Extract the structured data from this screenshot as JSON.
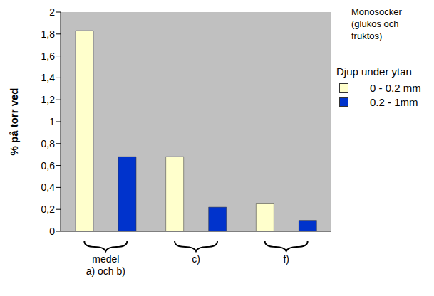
{
  "chart_data": {
    "type": "bar",
    "annotation": "Monosocker (glukos och fruktos)",
    "legend_title": "Djup under ytan",
    "y_label": "% på torr ved",
    "categories": [
      "medel a) och b)",
      "c)",
      "f)"
    ],
    "series": [
      {
        "name": "0 - 0.2 mm",
        "color": "#ffffcc",
        "values": [
          1.83,
          0.68,
          0.25
        ]
      },
      {
        "name": "0.2 - 1mm",
        "color": "#0033cc",
        "values": [
          0.68,
          0.22,
          0.1
        ]
      }
    ],
    "ylim": [
      0,
      2
    ],
    "yticks": [
      0,
      {
        "value": 0.2,
        "label": "0,2"
      },
      {
        "value": 0.4,
        "label": "0,4"
      },
      {
        "value": 0.6,
        "label": "0,6"
      },
      {
        "value": 0.8,
        "label": "0,8"
      },
      1,
      {
        "value": 1.2,
        "label": "1,2"
      },
      {
        "value": 1.4,
        "label": "1,4"
      },
      {
        "value": 1.6,
        "label": "1,6"
      },
      {
        "value": 1.8,
        "label": "1,8"
      },
      2
    ],
    "grid": false,
    "legend": "right"
  }
}
